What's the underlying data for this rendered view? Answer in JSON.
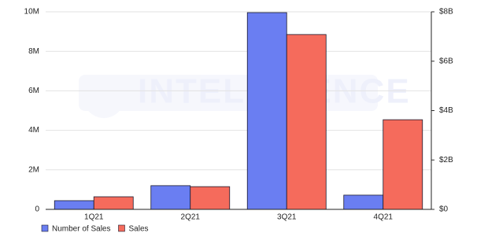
{
  "chart_data": {
    "type": "bar",
    "watermark": "INTELLIGENCE",
    "categories": [
      "1Q21",
      "2Q21",
      "3Q21",
      "4Q21"
    ],
    "series": [
      {
        "name": "Number of Sales",
        "color": "#6a7ef2",
        "values": [
          440000,
          1200000,
          9960000,
          720000
        ]
      },
      {
        "name": "Sales",
        "color": "#f56b5c",
        "axis": "y2",
        "values": [
          510000000,
          920000000,
          7080000000,
          3630000000
        ]
      }
    ],
    "ylim": [
      0,
      10000000
    ],
    "yticks": [
      0,
      {
        "value": 2000000,
        "label": "2M"
      },
      {
        "value": 4000000,
        "label": "4M"
      },
      {
        "value": 6000000,
        "label": "6M"
      },
      {
        "value": 8000000,
        "label": "8M"
      },
      {
        "value": 10000000,
        "label": "10M"
      }
    ],
    "y2lim": [
      0,
      8000000000
    ],
    "y2ticks": [
      {
        "value": 0,
        "label": "$0"
      },
      {
        "value": 2000000000,
        "label": "$2B"
      },
      {
        "value": 4000000000,
        "label": "$4B"
      },
      {
        "value": 6000000000,
        "label": "$6B"
      },
      {
        "value": 8000000000,
        "label": "$8B"
      }
    ],
    "grid": true,
    "legend": "bottom-left"
  }
}
